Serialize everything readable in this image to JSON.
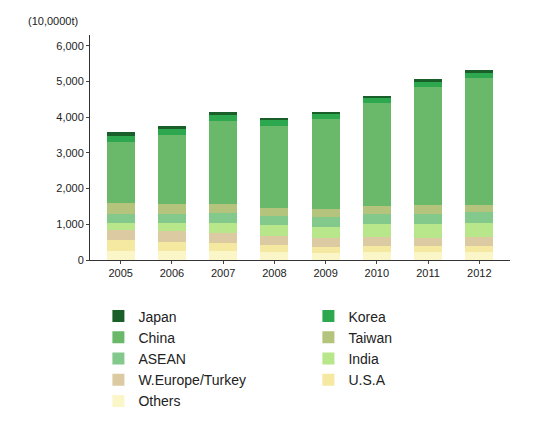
{
  "chart_data": {
    "type": "bar",
    "stacked": true,
    "grid": false,
    "y_label": "(10,0000t)",
    "categories": [
      "2005",
      "2006",
      "2007",
      "2008",
      "2009",
      "2010",
      "2011",
      "2012"
    ],
    "ylim": [
      0,
      6300
    ],
    "yticks": [
      0,
      {
        "value": 1000,
        "label": "1,000"
      },
      {
        "value": 2000,
        "label": "2,000"
      },
      {
        "value": 3000,
        "label": "3,000"
      },
      {
        "value": 4000,
        "label": "4,000"
      },
      {
        "value": 5000,
        "label": "5,000"
      },
      {
        "value": 6000,
        "label": "6,000"
      }
    ],
    "series": [
      {
        "name": "Japan",
        "color": "#1a5e2a",
        "values": [
          100,
          80,
          90,
          70,
          60,
          60,
          50,
          50
        ]
      },
      {
        "name": "Korea",
        "color": "#2ea84f",
        "values": [
          180,
          170,
          180,
          160,
          140,
          150,
          170,
          150
        ]
      },
      {
        "name": "China",
        "color": "#6ab86a",
        "values": [
          1700,
          1930,
          2320,
          2300,
          2520,
          2870,
          3290,
          3570
        ]
      },
      {
        "name": "Taiwan",
        "color": "#b5c47c",
        "values": [
          300,
          270,
          250,
          230,
          230,
          220,
          250,
          200
        ]
      },
      {
        "name": "ASEAN",
        "color": "#84c98c",
        "values": [
          250,
          250,
          280,
          250,
          270,
          300,
          300,
          300
        ]
      },
      {
        "name": "India",
        "color": "#b8e68a",
        "values": [
          200,
          250,
          270,
          300,
          320,
          350,
          370,
          390
        ]
      },
      {
        "name": "W.Europe/Turkey",
        "color": "#dccaa2",
        "values": [
          300,
          300,
          280,
          250,
          250,
          250,
          230,
          250
        ]
      },
      {
        "name": "U.S.A",
        "color": "#f5e8a0",
        "values": [
          300,
          250,
          230,
          200,
          160,
          180,
          180,
          180
        ]
      },
      {
        "name": "Others",
        "color": "#fbf6c8",
        "values": [
          250,
          250,
          250,
          220,
          200,
          220,
          220,
          220
        ]
      }
    ]
  }
}
